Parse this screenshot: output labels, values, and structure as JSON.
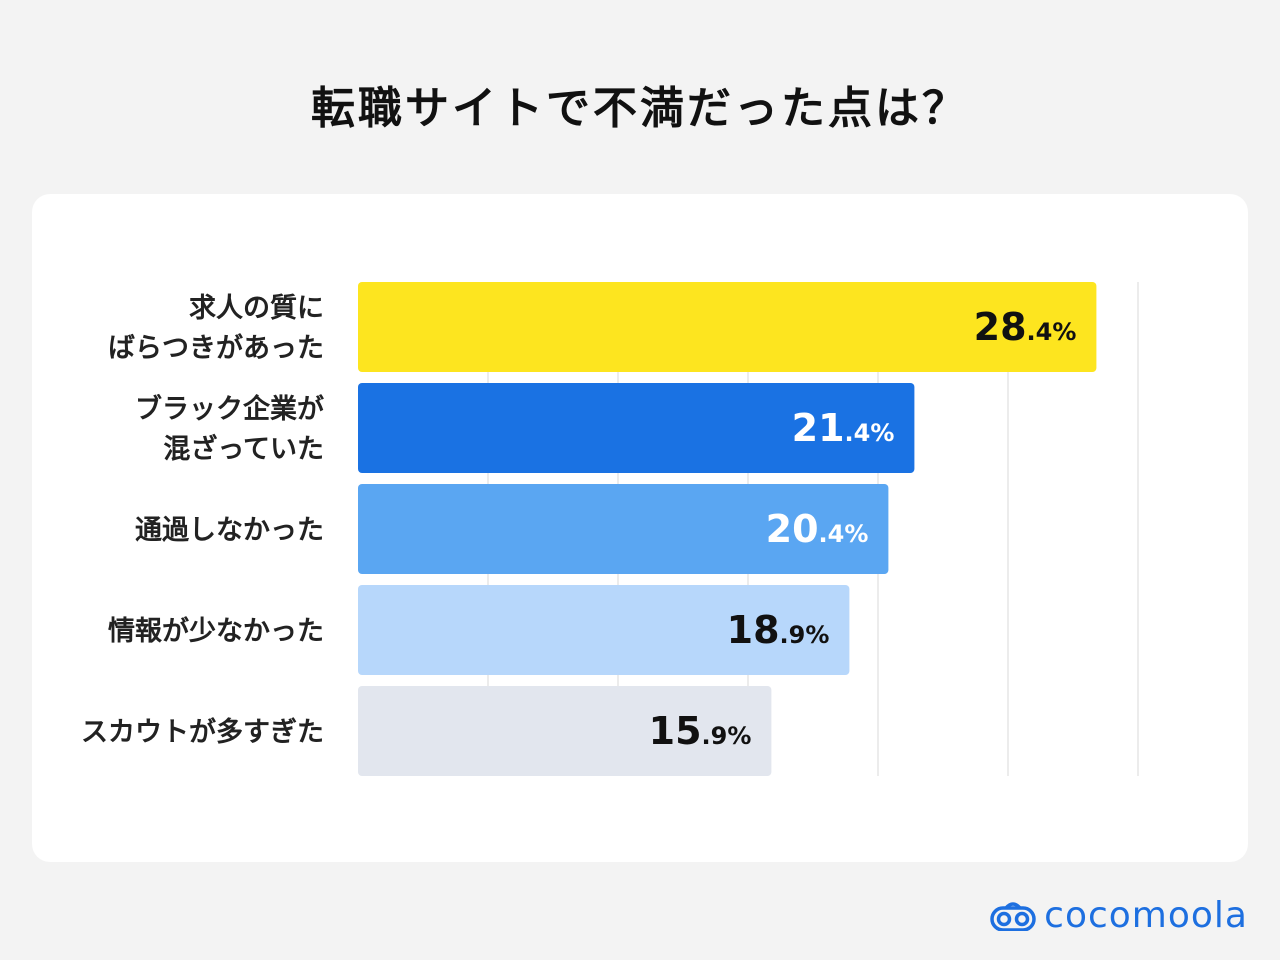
{
  "title": "転職サイトで不満だった点は？",
  "brand": {
    "name": "cocomoola",
    "color": "#1d6fe0"
  },
  "chart_data": {
    "type": "bar",
    "orientation": "horizontal",
    "title": "転職サイトで不満だった点は？",
    "categories": [
      [
        "求人の質に",
        "ばらつきがあった"
      ],
      [
        "ブラック企業が",
        "混ざっていた"
      ],
      [
        "通過しなかった"
      ],
      [
        "情報が少なかった"
      ],
      [
        "スカウトが多すぎた"
      ]
    ],
    "values": [
      28.4,
      21.4,
      20.4,
      18.9,
      15.9
    ],
    "value_suffix": "%",
    "bar_colors": [
      "#fde51f",
      "#1a72e3",
      "#5aa6f2",
      "#b7d7fb",
      "#e2e6ee"
    ],
    "label_colors": [
      "#111111",
      "#ffffff",
      "#ffffff",
      "#111111",
      "#111111"
    ],
    "xlim": [
      0,
      30
    ],
    "grid_step": 5,
    "grid": true,
    "legend": "none"
  }
}
